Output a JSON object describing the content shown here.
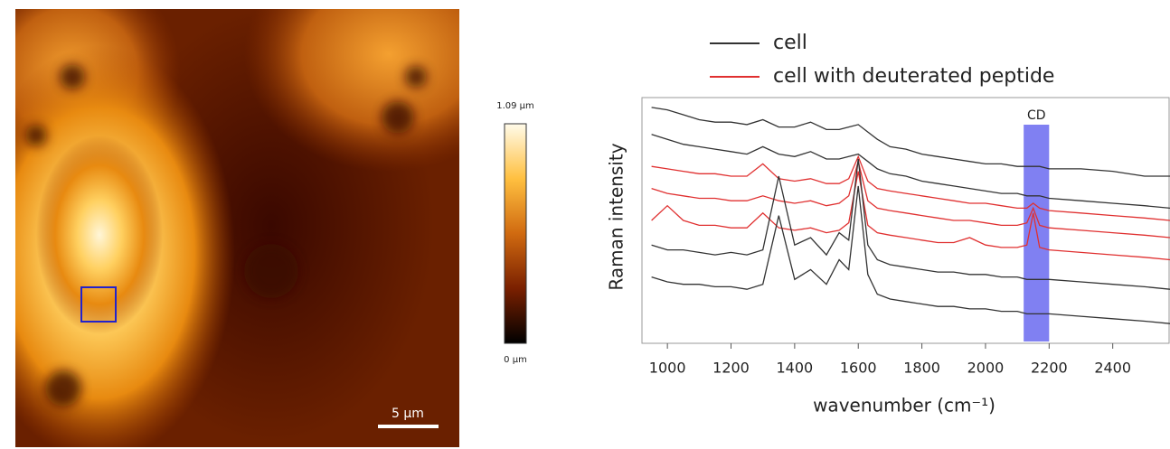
{
  "image_panel": {
    "colorbar_max": "1.09 µm",
    "colorbar_min": "0 µm",
    "scale_bar": "5 µm"
  },
  "chart_data": {
    "type": "line",
    "xlabel": "wavenumber (cm⁻¹)",
    "ylabel": "Raman intensity",
    "x": [
      950,
      1000,
      1050,
      1100,
      1150,
      1200,
      1250,
      1300,
      1350,
      1400,
      1450,
      1500,
      1540,
      1570,
      1600,
      1630,
      1660,
      1700,
      1750,
      1800,
      1850,
      1900,
      1950,
      2000,
      2050,
      2100,
      2130,
      2150,
      2170,
      2200,
      2300,
      2400,
      2500,
      2580
    ],
    "series": [
      {
        "name": "cell",
        "color": "#333333",
        "values": [
          96,
          95,
          93,
          91,
          90,
          90,
          89,
          91,
          88,
          88,
          90,
          87,
          87,
          88,
          89,
          86,
          83,
          80,
          79,
          77,
          76,
          75,
          74,
          73,
          73,
          72,
          72,
          72,
          72,
          71,
          71,
          70,
          68,
          68
        ]
      },
      {
        "name": "cell",
        "color": "#333333",
        "values": [
          85,
          83,
          81,
          80,
          79,
          78,
          77,
          80,
          77,
          76,
          78,
          75,
          75,
          76,
          77,
          74,
          71,
          69,
          68,
          66,
          65,
          64,
          63,
          62,
          61,
          61,
          60,
          60,
          60,
          59,
          58,
          57,
          56,
          55
        ]
      },
      {
        "name": "cell with deuterated peptide",
        "color": "#e03030",
        "values": [
          72,
          71,
          70,
          69,
          69,
          68,
          68,
          73,
          67,
          66,
          67,
          65,
          65,
          67,
          76,
          66,
          63,
          62,
          61,
          60,
          59,
          58,
          57,
          57,
          56,
          55,
          55,
          57,
          55,
          54,
          53,
          52,
          51,
          50
        ]
      },
      {
        "name": "cell with deuterated peptide",
        "color": "#e03030",
        "values": [
          63,
          61,
          60,
          59,
          59,
          58,
          58,
          60,
          58,
          57,
          58,
          56,
          57,
          60,
          74,
          58,
          55,
          54,
          53,
          52,
          51,
          50,
          50,
          49,
          48,
          48,
          49,
          55,
          48,
          47,
          46,
          45,
          44,
          43
        ]
      },
      {
        "name": "cell with deuterated peptide",
        "color": "#e03030",
        "values": [
          50,
          56,
          50,
          48,
          48,
          47,
          47,
          53,
          47,
          46,
          47,
          45,
          46,
          49,
          70,
          48,
          45,
          44,
          43,
          42,
          41,
          41,
          43,
          40,
          39,
          39,
          40,
          53,
          39,
          38,
          37,
          36,
          35,
          34
        ]
      },
      {
        "name": "cell",
        "color": "#333333",
        "values": [
          40,
          38,
          38,
          37,
          36,
          37,
          36,
          38,
          68,
          40,
          43,
          36,
          45,
          42,
          75,
          40,
          34,
          32,
          31,
          30,
          29,
          29,
          28,
          28,
          27,
          27,
          26,
          26,
          26,
          26,
          25,
          24,
          23,
          22
        ]
      },
      {
        "name": "cell",
        "color": "#333333",
        "values": [
          27,
          25,
          24,
          24,
          23,
          23,
          22,
          24,
          52,
          26,
          30,
          24,
          34,
          30,
          64,
          28,
          20,
          18,
          17,
          16,
          15,
          15,
          14,
          14,
          13,
          13,
          12,
          12,
          12,
          12,
          11,
          10,
          9,
          8
        ]
      }
    ],
    "highlight": {
      "x": [
        2120,
        2200
      ],
      "label": "CD",
      "color": "#6a6af0"
    },
    "xlim": [
      920,
      2580
    ],
    "xticks": [
      1000,
      1200,
      1400,
      1600,
      1800,
      2000,
      2200,
      2400
    ],
    "ylim": [
      0,
      100
    ]
  }
}
